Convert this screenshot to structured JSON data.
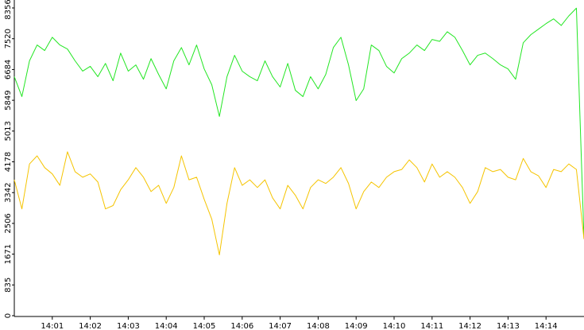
{
  "chart_data": {
    "type": "line",
    "x": [
      0,
      0.2,
      0.4,
      0.6,
      0.8,
      1,
      1.2,
      1.4,
      1.6,
      1.8,
      2,
      2.2,
      2.4,
      2.6,
      2.8,
      3,
      3.2,
      3.4,
      3.6,
      3.8,
      4,
      4.2,
      4.4,
      4.6,
      4.8,
      5,
      5.2,
      5.4,
      5.6,
      5.8,
      6,
      6.2,
      6.4,
      6.6,
      6.8,
      7,
      7.2,
      7.4,
      7.6,
      7.8,
      8,
      8.2,
      8.4,
      8.6,
      8.8,
      9,
      9.2,
      9.4,
      9.6,
      9.8,
      10,
      10.2,
      10.4,
      10.6,
      10.8,
      11,
      11.2,
      11.4,
      11.6,
      11.8,
      12,
      12.2,
      12.4,
      12.6,
      12.8,
      13,
      13.2,
      13.4,
      13.6,
      13.8,
      14,
      14.2,
      14.4,
      14.6,
      14.8,
      15
    ],
    "series": [
      {
        "color": "#22e622",
        "values": [
          6490,
          5950,
          6920,
          7350,
          7200,
          7560,
          7350,
          7240,
          6920,
          6640,
          6770,
          6490,
          6850,
          6380,
          7130,
          6640,
          6810,
          6420,
          6980,
          6550,
          6160,
          6920,
          7280,
          6810,
          7350,
          6700,
          6270,
          5410,
          6490,
          7070,
          6640,
          6490,
          6380,
          6920,
          6490,
          6210,
          6850,
          6120,
          5950,
          6490,
          6160,
          6550,
          7280,
          7560,
          6810,
          5840,
          6160,
          7350,
          7200,
          6770,
          6590,
          6980,
          7130,
          7350,
          7200,
          7500,
          7450,
          7710,
          7560,
          7200,
          6810,
          7070,
          7130,
          6980,
          6810,
          6700,
          6420,
          7410,
          7630,
          7780,
          7930,
          8060,
          7880,
          8140,
          8350,
          2080
        ]
      },
      {
        "color": "#f5c400",
        "values": [
          3690,
          2900,
          4120,
          4340,
          4020,
          3850,
          3540,
          4450,
          3910,
          3760,
          3850,
          3630,
          2900,
          2990,
          3420,
          3690,
          4020,
          3760,
          3370,
          3540,
          3050,
          3480,
          4340,
          3690,
          3760,
          3160,
          2620,
          1650,
          3050,
          4020,
          3540,
          3690,
          3480,
          3690,
          3200,
          2900,
          3540,
          3270,
          2900,
          3480,
          3690,
          3590,
          3760,
          4020,
          3590,
          2900,
          3370,
          3630,
          3480,
          3760,
          3910,
          3970,
          4230,
          4020,
          3630,
          4120,
          3760,
          3910,
          3760,
          3480,
          3050,
          3370,
          4020,
          3910,
          3970,
          3760,
          3690,
          4270,
          3910,
          3800,
          3480,
          3970,
          3910,
          4120,
          3970,
          2080
        ]
      }
    ],
    "xlim": [
      0,
      15
    ],
    "xticks": [
      {
        "value": 1,
        "label": "14:01"
      },
      {
        "value": 2,
        "label": "14:02"
      },
      {
        "value": 3,
        "label": "14:03"
      },
      {
        "value": 4,
        "label": "14:04"
      },
      {
        "value": 5,
        "label": "14:05"
      },
      {
        "value": 6,
        "label": "14:06"
      },
      {
        "value": 7,
        "label": "14:07"
      },
      {
        "value": 8,
        "label": "14:08"
      },
      {
        "value": 9,
        "label": "14:09"
      },
      {
        "value": 10,
        "label": "14:10"
      },
      {
        "value": 11,
        "label": "14:11"
      },
      {
        "value": 12,
        "label": "14:12"
      },
      {
        "value": 13,
        "label": "14:13"
      },
      {
        "value": 14,
        "label": "14:14"
      }
    ],
    "ylim": [
      0,
      8356
    ],
    "yticks": [
      0,
      835,
      1671,
      2506,
      3342,
      4178,
      5013,
      5849,
      6684,
      7520,
      8356
    ],
    "grid": false
  }
}
